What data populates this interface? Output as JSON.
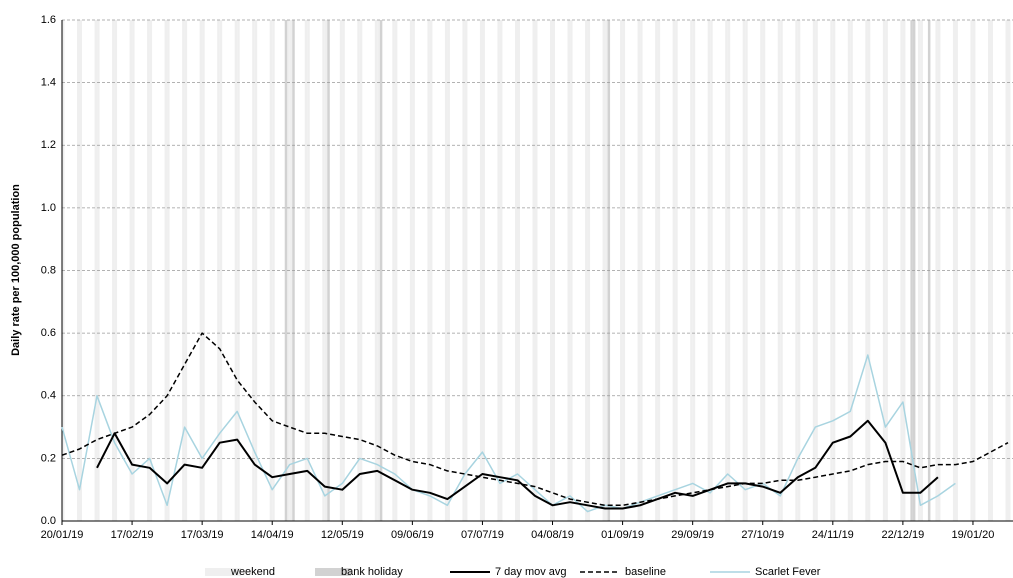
{
  "chart_data": {
    "type": "line",
    "y_label": "Daily rate per 100,000 population",
    "x": [
      "20/01/19",
      "27/01/19",
      "03/02/19",
      "10/02/19",
      "17/02/19",
      "24/02/19",
      "03/03/19",
      "10/03/19",
      "17/03/19",
      "24/03/19",
      "31/03/19",
      "07/04/19",
      "14/04/19",
      "21/04/19",
      "28/04/19",
      "05/05/19",
      "12/05/19",
      "19/05/19",
      "26/05/19",
      "02/06/19",
      "09/06/19",
      "16/06/19",
      "23/06/19",
      "30/06/19",
      "07/07/19",
      "14/07/19",
      "21/07/19",
      "28/07/19",
      "04/08/19",
      "11/08/19",
      "18/08/19",
      "25/08/19",
      "01/09/19",
      "08/09/19",
      "15/09/19",
      "22/09/19",
      "29/09/19",
      "06/10/19",
      "13/10/19",
      "20/10/19",
      "27/10/19",
      "03/11/19",
      "10/11/19",
      "17/11/19",
      "24/11/19",
      "01/12/19",
      "08/12/19",
      "15/12/19",
      "22/12/19",
      "29/12/19",
      "05/01/20",
      "12/01/20",
      "19/01/20",
      "26/01/20",
      "02/02/20"
    ],
    "series": [
      {
        "name": "Scarlet Fever",
        "color": "#a8d4e0",
        "style": "solid",
        "width": 1.5,
        "values": [
          0.3,
          0.1,
          0.4,
          0.25,
          0.15,
          0.2,
          0.05,
          0.3,
          0.2,
          0.28,
          0.35,
          0.22,
          0.1,
          0.18,
          0.2,
          0.08,
          0.12,
          0.2,
          0.18,
          0.15,
          0.1,
          0.08,
          0.05,
          0.15,
          0.22,
          0.12,
          0.15,
          0.1,
          0.05,
          0.08,
          0.03,
          0.05,
          0.04,
          0.06,
          0.08,
          0.1,
          0.12,
          0.09,
          0.15,
          0.1,
          0.12,
          0.08,
          0.2,
          0.3,
          0.32,
          0.35,
          0.53,
          0.3,
          0.38,
          0.05,
          0.08,
          0.12,
          null,
          null,
          null
        ]
      },
      {
        "name": "baseline",
        "color": "#000000",
        "style": "dashed",
        "width": 1.5,
        "values": [
          0.21,
          0.23,
          0.26,
          0.28,
          0.3,
          0.34,
          0.4,
          0.5,
          0.6,
          0.55,
          0.45,
          0.38,
          0.32,
          0.3,
          0.28,
          0.28,
          0.27,
          0.26,
          0.24,
          0.21,
          0.19,
          0.18,
          0.16,
          0.15,
          0.14,
          0.13,
          0.12,
          0.11,
          0.09,
          0.07,
          0.06,
          0.05,
          0.05,
          0.06,
          0.07,
          0.08,
          0.09,
          0.1,
          0.11,
          0.12,
          0.12,
          0.13,
          0.13,
          0.14,
          0.15,
          0.16,
          0.18,
          0.19,
          0.19,
          0.17,
          0.18,
          0.18,
          0.19,
          0.22,
          0.25
        ]
      },
      {
        "name": "7 day mov avg",
        "color": "#000000",
        "style": "solid",
        "width": 2,
        "values": [
          null,
          null,
          0.17,
          0.28,
          0.18,
          0.17,
          0.12,
          0.18,
          0.17,
          0.25,
          0.26,
          0.18,
          0.14,
          0.15,
          0.16,
          0.11,
          0.1,
          0.15,
          0.16,
          0.13,
          0.1,
          0.09,
          0.07,
          0.11,
          0.15,
          0.14,
          0.13,
          0.08,
          0.05,
          0.06,
          0.05,
          0.04,
          0.04,
          0.05,
          0.07,
          0.09,
          0.08,
          0.1,
          0.12,
          0.12,
          0.11,
          0.09,
          0.14,
          0.17,
          0.25,
          0.27,
          0.32,
          0.25,
          0.09,
          0.09,
          0.14,
          null,
          null,
          null,
          null
        ]
      }
    ],
    "shading": [
      {
        "name": "weekend",
        "color": "#efefef"
      },
      {
        "name": "bank holiday",
        "color": "#d2d2d2",
        "dates": [
          "19/04/19",
          "22/04/19",
          "06/05/19",
          "27/05/19",
          "26/08/19",
          "25/12/19",
          "26/12/19",
          "01/01/20"
        ]
      }
    ],
    "xlim": [
      "20/01/19",
      "04/02/20"
    ],
    "xticks": [
      "20/01/19",
      "17/02/19",
      "17/03/19",
      "14/04/19",
      "12/05/19",
      "09/06/19",
      "07/07/19",
      "04/08/19",
      "01/09/19",
      "29/09/19",
      "27/10/19",
      "24/11/19",
      "22/12/19",
      "19/01/20"
    ],
    "ylim": [
      0,
      1.6
    ],
    "yticks": [
      {
        "value": 0,
        "label": "0.0"
      },
      0.2,
      0.4,
      0.6,
      0.8,
      {
        "value": 1,
        "label": "1.0"
      },
      1.2,
      1.4,
      1.6
    ],
    "grid": true
  }
}
